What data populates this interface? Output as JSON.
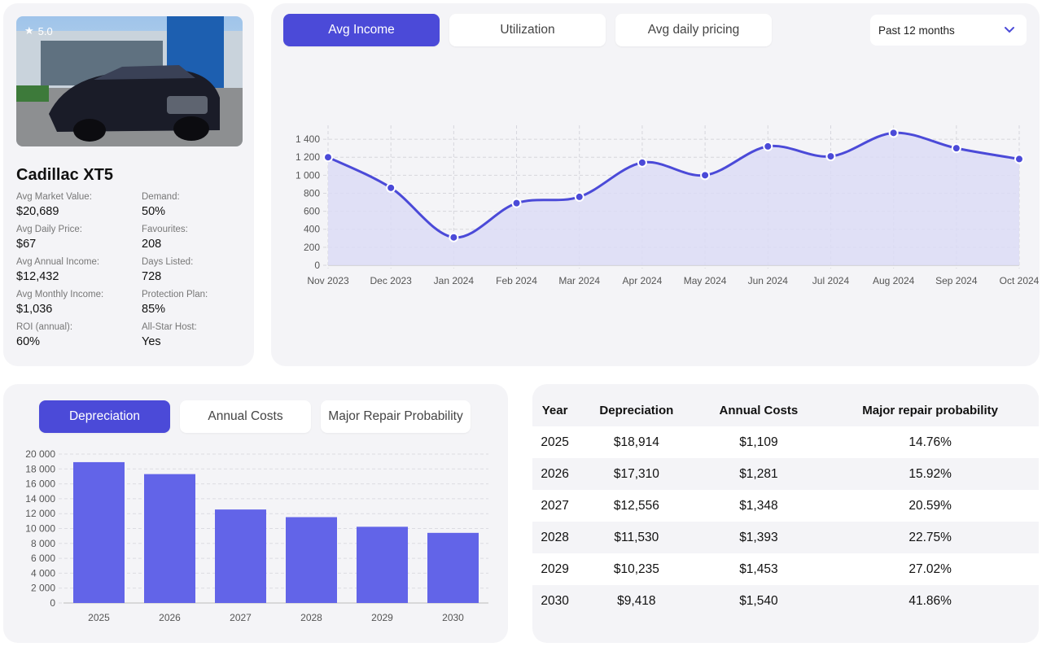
{
  "car": {
    "rating": "5.0",
    "title": "Cadillac XT5",
    "stats": [
      {
        "label": "Avg Market Value:",
        "value": "$20,689"
      },
      {
        "label": "Demand:",
        "value": "50%"
      },
      {
        "label": "Avg Daily Price:",
        "value": "$67"
      },
      {
        "label": "Favourites:",
        "value": "208"
      },
      {
        "label": "Avg Annual Income:",
        "value": "$12,432"
      },
      {
        "label": "Days Listed:",
        "value": "728"
      },
      {
        "label": "Avg Monthly Income:",
        "value": "$1,036"
      },
      {
        "label": "Protection Plan:",
        "value": "85%"
      },
      {
        "label": "ROI (annual):",
        "value": "60%"
      },
      {
        "label": "All-Star Host:",
        "value": "Yes"
      }
    ]
  },
  "income_tabs": [
    "Avg Income",
    "Utilization",
    "Avg daily pricing"
  ],
  "period_select": "Past 12 months",
  "dep_tabs": [
    "Depreciation",
    "Annual Costs",
    "Major Repair Probability"
  ],
  "colors": {
    "accent": "#4b4ad8",
    "area_fill": "#dcdcf6",
    "bar": "#6264e8"
  },
  "chart_data": [
    {
      "type": "area",
      "x": [
        "Nov 2023",
        "Dec 2023",
        "Jan 2024",
        "Feb 2024",
        "Mar 2024",
        "Apr 2024",
        "May 2024",
        "Jun 2024",
        "Jul 2024",
        "Aug 2024",
        "Sep 2024",
        "Oct 2024"
      ],
      "values": [
        1200,
        860,
        310,
        690,
        760,
        1140,
        1000,
        1320,
        1210,
        1470,
        1300,
        1180
      ],
      "yticks": [
        "0",
        "200",
        "400",
        "600",
        "800",
        "1 000",
        "1 200",
        "1 400"
      ],
      "ylim": [
        0,
        1500
      ],
      "grid": true
    },
    {
      "type": "bar",
      "categories": [
        "2025",
        "2026",
        "2027",
        "2028",
        "2029",
        "2030"
      ],
      "values": [
        18914,
        17310,
        12556,
        11530,
        10235,
        9418
      ],
      "yticks": [
        "0",
        "2 000",
        "4 000",
        "6 000",
        "8 000",
        "10 000",
        "12 000",
        "14 000",
        "16 000",
        "18 000",
        "20 000"
      ],
      "ylim": [
        0,
        20000
      ],
      "grid": true
    }
  ],
  "table": {
    "headers": [
      "Year",
      "Depreciation",
      "Annual Costs",
      "Major repair probability"
    ],
    "rows": [
      [
        "2025",
        "$18,914",
        "$1,109",
        "14.76%"
      ],
      [
        "2026",
        "$17,310",
        "$1,281",
        "15.92%"
      ],
      [
        "2027",
        "$12,556",
        "$1,348",
        "20.59%"
      ],
      [
        "2028",
        "$11,530",
        "$1,393",
        "22.75%"
      ],
      [
        "2029",
        "$10,235",
        "$1,453",
        "27.02%"
      ],
      [
        "2030",
        "$9,418",
        "$1,540",
        "41.86%"
      ]
    ]
  }
}
